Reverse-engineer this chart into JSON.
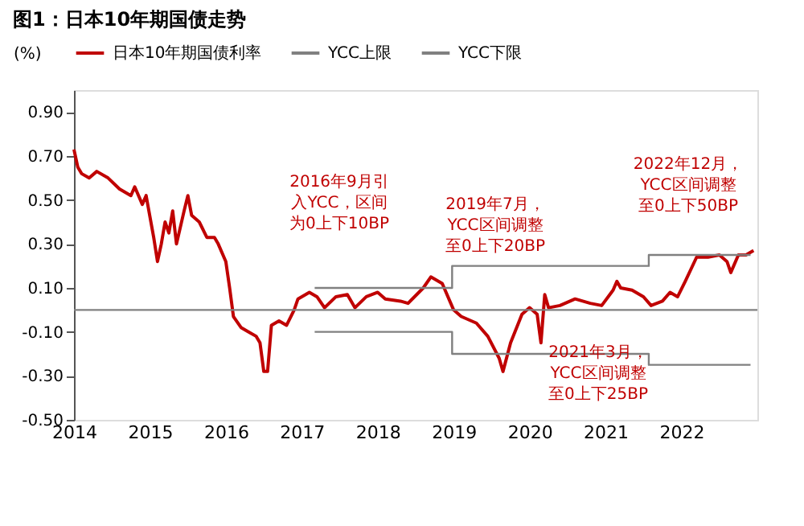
{
  "chart_data": {
    "type": "line",
    "title": "图1：日本10年期国债走势",
    "ylabel": "(%)",
    "xlim": [
      2014,
      2023
    ],
    "xticks": [
      2014,
      2015,
      2016,
      2017,
      2018,
      2019,
      2020,
      2021,
      2022
    ],
    "ylim": [
      -0.5,
      1.0
    ],
    "yticks": [
      {
        "value": -0.5,
        "label": "-0.50"
      },
      {
        "value": -0.3,
        "label": "-0.30"
      },
      {
        "value": -0.1,
        "label": "-0.10"
      },
      {
        "value": 0.1,
        "label": "0.10"
      },
      {
        "value": 0.3,
        "label": "0.30"
      },
      {
        "value": 0.5,
        "label": "0.50"
      },
      {
        "value": 0.7,
        "label": "0.70"
      },
      {
        "value": 0.9,
        "label": "0.90"
      }
    ],
    "grid": false,
    "legend": "top",
    "line_style": "solid",
    "marker": "none",
    "series": [
      {
        "name": "日本10年期国债利率",
        "color": "#c00000",
        "x": [
          2014.0,
          2014.05,
          2014.1,
          2014.2,
          2014.3,
          2014.45,
          2014.6,
          2014.75,
          2014.8,
          2014.9,
          2014.95,
          2015.05,
          2015.1,
          2015.15,
          2015.2,
          2015.25,
          2015.3,
          2015.35,
          2015.45,
          2015.5,
          2015.55,
          2015.65,
          2015.75,
          2015.85,
          2015.9,
          2016.0,
          2016.05,
          2016.1,
          2016.2,
          2016.3,
          2016.4,
          2016.45,
          2016.5,
          2016.55,
          2016.6,
          2016.7,
          2016.8,
          2016.9,
          2016.95,
          2017.1,
          2017.2,
          2017.3,
          2017.45,
          2017.6,
          2017.7,
          2017.85,
          2018.0,
          2018.1,
          2018.3,
          2018.4,
          2018.6,
          2018.7,
          2018.85,
          2019.0,
          2019.1,
          2019.3,
          2019.45,
          2019.6,
          2019.65,
          2019.75,
          2019.9,
          2020.0,
          2020.1,
          2020.15,
          2020.2,
          2020.25,
          2020.4,
          2020.6,
          2020.8,
          2020.95,
          2021.1,
          2021.15,
          2021.2,
          2021.35,
          2021.5,
          2021.6,
          2021.75,
          2021.85,
          2021.95,
          2022.05,
          2022.2,
          2022.35,
          2022.5,
          2022.6,
          2022.65,
          2022.75,
          2022.85,
          2022.95
        ],
        "values": [
          0.73,
          0.65,
          0.62,
          0.6,
          0.63,
          0.6,
          0.55,
          0.52,
          0.56,
          0.48,
          0.52,
          0.33,
          0.22,
          0.3,
          0.4,
          0.35,
          0.45,
          0.3,
          0.45,
          0.52,
          0.43,
          0.4,
          0.33,
          0.33,
          0.3,
          0.22,
          0.1,
          -0.03,
          -0.08,
          -0.1,
          -0.12,
          -0.15,
          -0.28,
          -0.28,
          -0.07,
          -0.05,
          -0.07,
          0.0,
          0.05,
          0.08,
          0.06,
          0.01,
          0.06,
          0.07,
          0.01,
          0.06,
          0.08,
          0.05,
          0.04,
          0.03,
          0.1,
          0.15,
          0.12,
          0.0,
          -0.03,
          -0.06,
          -0.12,
          -0.22,
          -0.28,
          -0.15,
          -0.02,
          0.01,
          -0.02,
          -0.15,
          0.07,
          0.01,
          0.02,
          0.05,
          0.03,
          0.02,
          0.09,
          0.13,
          0.1,
          0.09,
          0.06,
          0.02,
          0.04,
          0.08,
          0.06,
          0.13,
          0.24,
          0.24,
          0.25,
          0.22,
          0.17,
          0.25,
          0.25,
          0.27
        ]
      },
      {
        "name": "YCC上限",
        "color": "#808080",
        "type": "step",
        "x": [
          2017.17,
          2018.98,
          2018.98,
          2021.57,
          2021.57,
          2022.91
        ],
        "values": [
          0.1,
          0.1,
          0.2,
          0.2,
          0.25,
          0.25
        ]
      },
      {
        "name": "YCC下限",
        "color": "#808080",
        "type": "step",
        "x": [
          2017.17,
          2018.98,
          2018.98,
          2021.57,
          2021.57,
          2022.91
        ],
        "values": [
          -0.1,
          -0.1,
          -0.2,
          -0.2,
          -0.25,
          -0.25
        ]
      }
    ],
    "ref_lines": [
      {
        "axis": "y",
        "value": 0,
        "color": "#808080"
      }
    ],
    "annotations": [
      "2016年9月引入YCC，区间为0上下10BP",
      "2019年7月，YCC区间调整至0上下20BP",
      "2021年3月，YCC区间调整至0上下25BP",
      "2022年12月，YCC区间调整至0上下50BP"
    ]
  }
}
